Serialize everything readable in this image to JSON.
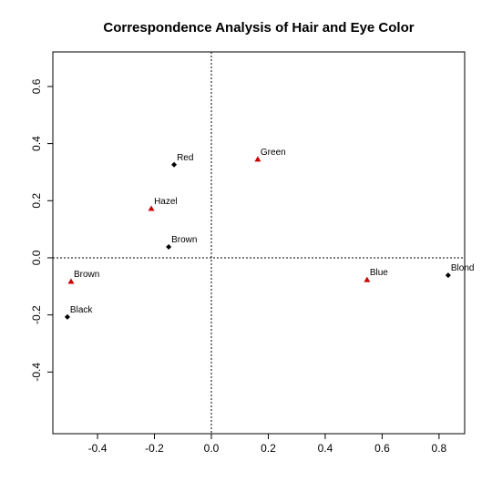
{
  "chart_data": {
    "type": "scatter",
    "title": "Correspondence Analysis of Hair and Eye Color",
    "xlim": [
      -0.557,
      0.89
    ],
    "ylim": [
      -0.616,
      0.721
    ],
    "xticks": [
      -0.4,
      -0.2,
      {
        "value": 0,
        "label": "0.0"
      },
      0.2,
      0.4,
      0.6,
      0.8
    ],
    "yticks": [
      -0.4,
      -0.2,
      {
        "value": 0,
        "label": "0.0"
      },
      0.2,
      0.4,
      0.6
    ],
    "zero_lines": true,
    "series": [
      {
        "color": "#000000",
        "marker": "diamond",
        "labels": [
          "Black",
          "Brown",
          "Red",
          "Blond"
        ],
        "x": [
          -0.506,
          -0.15,
          -0.131,
          0.832
        ],
        "values": [
          -0.207,
          0.038,
          0.326,
          -0.061
        ]
      },
      {
        "color": "#cc0000",
        "marker": "triangle",
        "labels": [
          "Brown",
          "Hazel",
          "Green",
          "Blue"
        ],
        "x": [
          -0.493,
          -0.211,
          0.163,
          0.547
        ],
        "values": [
          -0.083,
          0.172,
          0.345,
          -0.077
        ]
      }
    ]
  }
}
